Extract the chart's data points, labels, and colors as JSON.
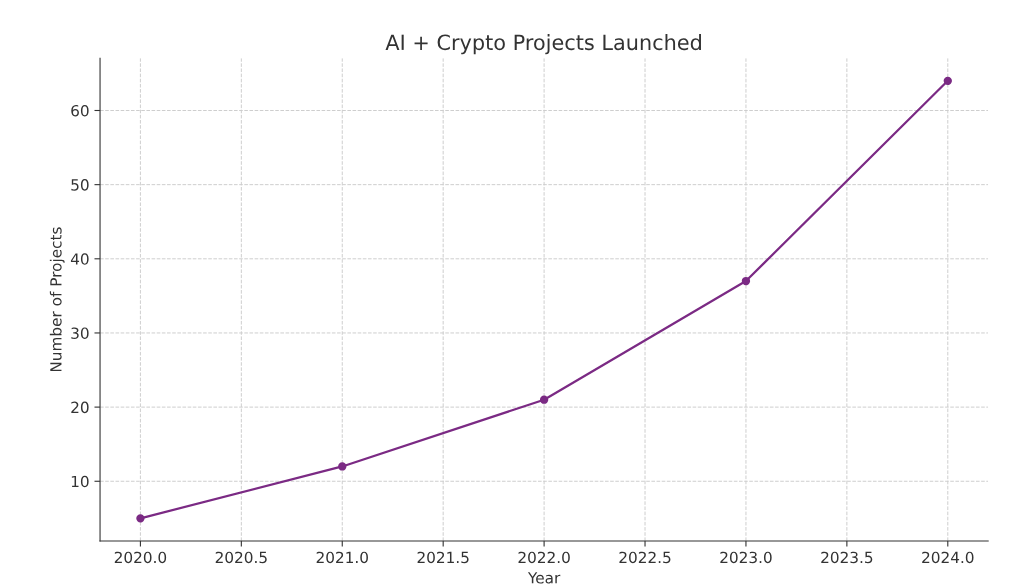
{
  "chart_data": {
    "type": "line",
    "title": "AI + Crypto Projects Launched",
    "xlabel": "Year",
    "ylabel": "Number of Projects",
    "x": [
      2020,
      2021,
      2022,
      2023,
      2024
    ],
    "series": [
      {
        "color": "#7b2a84",
        "values": [
          5,
          12,
          21,
          37,
          64
        ]
      }
    ],
    "xlim": [
      2019.8,
      2024.2
    ],
    "xticks": [
      {
        "value": 2020,
        "label": "2020.0"
      },
      2020.5,
      {
        "value": 2021,
        "label": "2021.0"
      },
      2021.5,
      {
        "value": 2022,
        "label": "2022.0"
      },
      2022.5,
      {
        "value": 2023,
        "label": "2023.0"
      },
      2023.5,
      {
        "value": 2024,
        "label": "2024.0"
      }
    ],
    "ylim": [
      1.95,
      67.05
    ],
    "yticks": [
      10,
      20,
      30,
      40,
      50,
      60
    ],
    "grid": true,
    "marker": "circle",
    "line_style": "solid"
  }
}
